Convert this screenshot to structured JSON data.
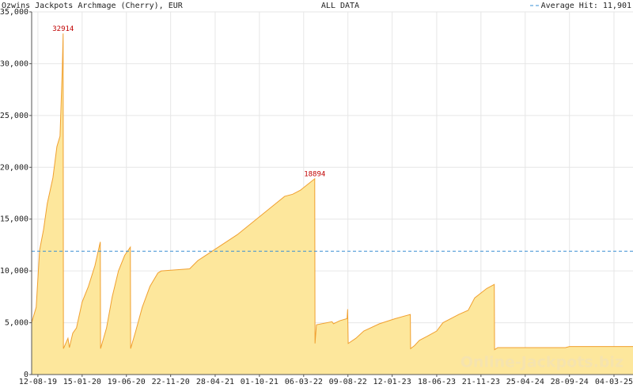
{
  "chart_data": {
    "type": "area",
    "title": "Ozwins Jackpots Archmage (Cherry), EUR",
    "subtitle": "ALL DATA",
    "watermark": "Online-Jackpots.biz",
    "average": {
      "label": "Average Hit: 11,901",
      "value": 11901,
      "color": "#3a8fd4"
    },
    "x": [
      "2019-07-21",
      "2019-08-06",
      "2019-08-18",
      "2019-09-01",
      "2019-09-14",
      "2019-10-04",
      "2019-10-18",
      "2019-10-29",
      "2019-11-06",
      "2019-11-09",
      "2019-11-10",
      "2019-11-26",
      "2019-12-01",
      "2019-12-13",
      "2019-12-26",
      "2020-01-15",
      "2020-02-06",
      "2020-02-29",
      "2020-03-19",
      "2020-03-20",
      "2020-04-10",
      "2020-04-30",
      "2020-05-22",
      "2020-06-13",
      "2020-07-03",
      "2020-07-04",
      "2020-07-22",
      "2020-08-14",
      "2020-09-10",
      "2020-10-08",
      "2020-10-20",
      "2021-01-28",
      "2021-02-26",
      "2021-07-15",
      "2021-12-29",
      "2022-01-26",
      "2022-02-23",
      "2022-04-14",
      "2022-04-15",
      "2022-04-20",
      "2022-06-14",
      "2022-06-19",
      "2022-07-12",
      "2022-08-06",
      "2022-08-08",
      "2022-08-10",
      "2022-09-06",
      "2022-10-04",
      "2022-11-28",
      "2023-01-23",
      "2023-03-17",
      "2023-03-18",
      "2023-04-01",
      "2023-04-18",
      "2023-05-16",
      "2023-06-18",
      "2023-07-10",
      "2023-09-04",
      "2023-10-07",
      "2023-10-30",
      "2023-12-11",
      "2024-01-07",
      "2024-01-08",
      "2024-01-19",
      "2024-09-14",
      "2024-09-28",
      "2025-05-10"
    ],
    "series": [
      {
        "color": "#f0a030",
        "fill": "#fde79c",
        "values": [
          5000,
          6500,
          12000,
          14000,
          16500,
          19000,
          22000,
          23000,
          29500,
          32914,
          2500,
          3500,
          2600,
          4000,
          4500,
          7000,
          8500,
          10500,
          12800,
          2500,
          4500,
          7500,
          10000,
          11500,
          12300,
          2500,
          4200,
          6500,
          8500,
          9800,
          10000,
          10200,
          11000,
          13500,
          17200,
          17400,
          17800,
          18894,
          3000,
          4800,
          5100,
          4900,
          5200,
          5400,
          6300,
          3000,
          3500,
          4200,
          4900,
          5400,
          5800,
          2500,
          2800,
          3300,
          3700,
          4200,
          5000,
          5800,
          6200,
          7400,
          8300,
          8700,
          2400,
          2600,
          2600,
          2700,
          2700
        ],
        "value_labels": [
          null,
          null,
          null,
          null,
          null,
          null,
          null,
          null,
          null,
          "32914",
          null,
          null,
          null,
          null,
          null,
          null,
          null,
          null,
          null,
          null,
          null,
          null,
          null,
          null,
          null,
          null,
          null,
          null,
          null,
          null,
          null,
          null,
          null,
          null,
          null,
          null,
          null,
          "18894",
          null,
          null,
          null,
          null,
          null,
          null,
          null,
          null,
          null,
          null,
          null,
          null,
          null,
          null,
          null,
          null,
          null,
          null,
          null,
          null,
          null,
          null,
          null,
          null,
          null,
          null,
          null,
          null,
          null
        ]
      }
    ],
    "xlim": [
      "2019-07-21",
      "2025-05-10"
    ],
    "xticks": [
      {
        "value": "2019-08-12",
        "label": "12-08-19"
      },
      {
        "value": "2020-01-15",
        "label": "15-01-20"
      },
      {
        "value": "2020-06-19",
        "label": "19-06-20"
      },
      {
        "value": "2020-11-22",
        "label": "22-11-20"
      },
      {
        "value": "2021-04-28",
        "label": "28-04-21"
      },
      {
        "value": "2021-10-01",
        "label": "01-10-21"
      },
      {
        "value": "2022-03-06",
        "label": "06-03-22"
      },
      {
        "value": "2022-08-09",
        "label": "09-08-22"
      },
      {
        "value": "2023-01-12",
        "label": "12-01-23"
      },
      {
        "value": "2023-06-18",
        "label": "18-06-23"
      },
      {
        "value": "2023-11-21",
        "label": "21-11-23"
      },
      {
        "value": "2024-04-25",
        "label": "25-04-24"
      },
      {
        "value": "2024-09-28",
        "label": "28-09-24"
      },
      {
        "value": "2025-03-04",
        "label": "04-03-25"
      }
    ],
    "ylim": [
      0,
      35000
    ],
    "yticks": [
      0,
      {
        "value": 5000,
        "label": "5,000"
      },
      {
        "value": 10000,
        "label": "10,000"
      },
      {
        "value": 15000,
        "label": "15,000"
      },
      {
        "value": 20000,
        "label": "20,000"
      },
      {
        "value": 25000,
        "label": "25,000"
      },
      {
        "value": 30000,
        "label": "30,000"
      },
      {
        "value": 35000,
        "label": "35,000"
      }
    ],
    "grid": true
  }
}
